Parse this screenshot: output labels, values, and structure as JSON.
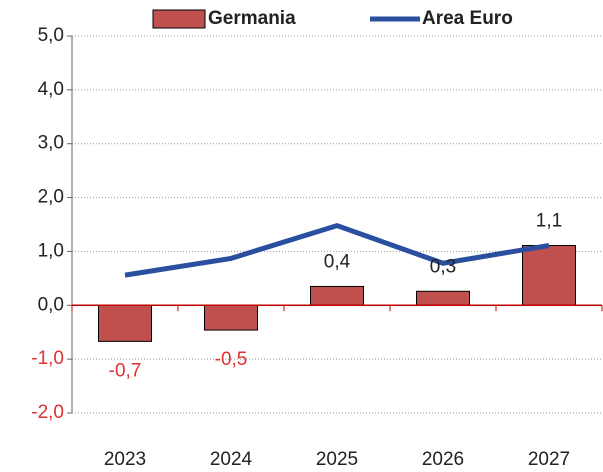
{
  "chart_data": {
    "type": "bar_line",
    "categories": [
      "2023",
      "2024",
      "2025",
      "2026",
      "2027"
    ],
    "series": [
      {
        "name": "Germania",
        "type": "bar",
        "color": "#c0504d",
        "values": [
          -0.67,
          -0.46,
          0.35,
          0.26,
          1.11
        ],
        "value_labels": [
          "-0,7",
          "-0,5",
          "0,4",
          "0,3",
          "1,1"
        ]
      },
      {
        "name": "Area Euro",
        "type": "line",
        "color": "#2a4f9e",
        "values": [
          0.56,
          0.87,
          1.48,
          0.78,
          1.11
        ]
      }
    ],
    "negative_color": "#e03030",
    "ylim": [
      -2,
      5
    ],
    "yticks": [
      {
        "value": -2,
        "label": "-2,0"
      },
      {
        "value": -1,
        "label": "-1,0"
      },
      {
        "value": 0,
        "label": "0,0"
      },
      {
        "value": 1,
        "label": "1,0"
      },
      {
        "value": 2,
        "label": "2,0"
      },
      {
        "value": 3,
        "label": "3,0"
      },
      {
        "value": 4,
        "label": "4,0"
      },
      {
        "value": 5,
        "label": "5,0"
      }
    ],
    "grid": true,
    "legend": "top"
  }
}
